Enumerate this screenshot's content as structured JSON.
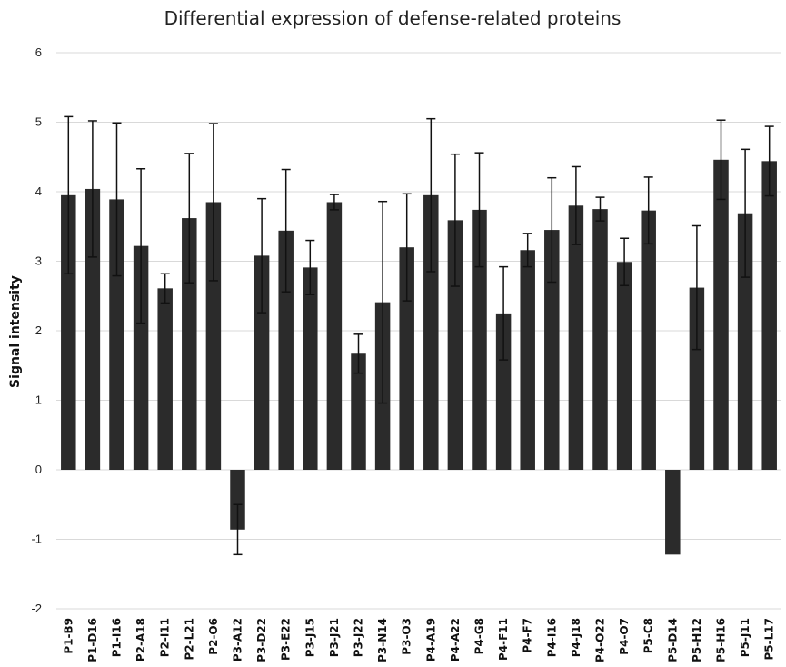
{
  "chart_data": {
    "type": "bar",
    "title": "Differential expression of defense-related proteins",
    "xlabel": "",
    "ylabel": "Signal intensity",
    "ylim": [
      -2,
      6
    ],
    "yticks": [
      "6",
      "5",
      "4",
      "3",
      "2",
      "1",
      "0",
      "-1",
      "-2"
    ],
    "grid": true,
    "color": "#2b2b2b",
    "categories": [
      "P1-B9",
      "P1-D16",
      "P1-I16",
      "P2-A18",
      "P2-I11",
      "P2-L21",
      "P2-O6",
      "P3-A12",
      "P3-D22",
      "P3-E22",
      "P3-J15",
      "P3-J21",
      "P3-J22",
      "P3-N14",
      "P3-O3",
      "P4-A19",
      "P4-A22",
      "P4-G8",
      "P4-F11",
      "P4-F7",
      "P4-I16",
      "P4-J18",
      "P4-O22",
      "P4-O7",
      "P5-C8",
      "P5-D14",
      "P5-H12",
      "P5-H16",
      "P5-J11",
      "P5-L17"
    ],
    "values": [
      3.95,
      4.04,
      3.89,
      3.22,
      2.61,
      3.62,
      3.85,
      -0.86,
      3.08,
      3.44,
      2.91,
      3.85,
      1.67,
      2.41,
      3.2,
      3.95,
      3.59,
      3.74,
      2.25,
      3.16,
      3.45,
      3.8,
      3.75,
      2.99,
      3.73,
      -1.22,
      2.62,
      4.46,
      3.69,
      4.44
    ],
    "errors": [
      1.13,
      0.98,
      1.1,
      1.11,
      0.21,
      0.93,
      1.13,
      0.36,
      0.82,
      0.88,
      0.39,
      0.11,
      0.28,
      1.45,
      0.77,
      1.1,
      0.95,
      0.82,
      0.67,
      0.24,
      0.75,
      0.56,
      0.17,
      0.34,
      0.48,
      0,
      0.89,
      0.57,
      0.92,
      0.5
    ]
  }
}
